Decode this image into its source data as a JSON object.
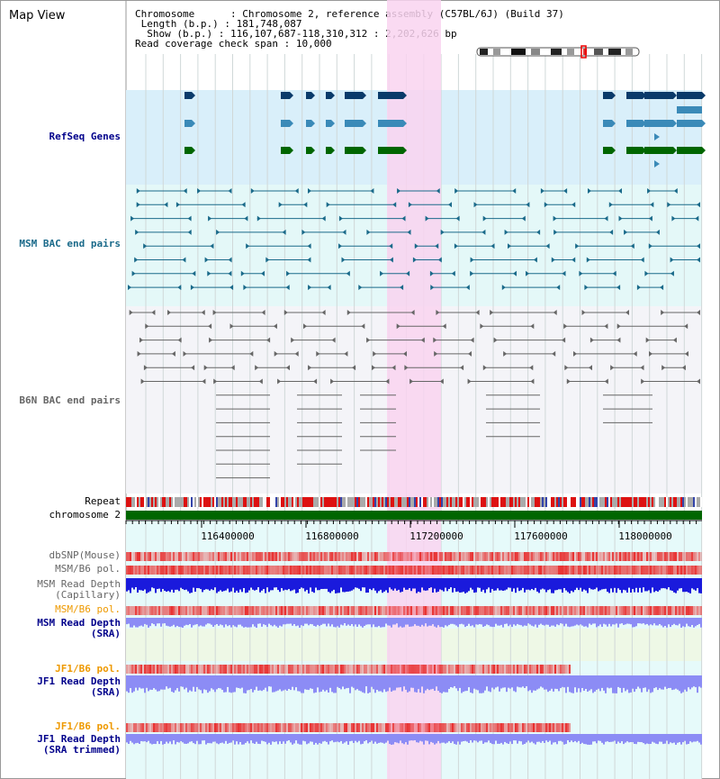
{
  "title": "Map View",
  "info": {
    "chromosome_key": "Chromosome",
    "chromosome_val": "Chromosome 2, reference assembly (C57BL/6J) (Build 37)",
    "length_key": "Length (b.p.)",
    "length_val": "181,748,087",
    "show_key": "Show (b.p.)",
    "show_val": "116,107,687-118,310,312 : 2,202,626 bp",
    "coverage_key": "Read coverage check span",
    "coverage_val": "10,000"
  },
  "tracks": {
    "refseq": "RefSeq Genes",
    "msm_bac": "MSM BAC end pairs",
    "b6n_bac": "B6N BAC end pairs",
    "repeat": "Repeat",
    "chromosome": "chromosome 2",
    "dbsnp": "dbSNP(Mouse)",
    "msm_b6_pol_1": "MSM/B6 pol.",
    "msm_read_depth_cap_1": "MSM Read Depth",
    "msm_read_depth_cap_2": "(Capillary)",
    "msm_b6_pol_2": "MSM/B6 pol.",
    "msm_read_depth_sra_1": "MSM Read Depth",
    "msm_read_depth_sra_2": "(SRA)",
    "jf1_b6_pol_1": "JF1/B6 pol.",
    "jf1_read_depth_sra_1": "JF1 Read Depth",
    "jf1_read_depth_sra_2": "(SRA)",
    "jf1_b6_pol_2": "JF1/B6 pol.",
    "jf1_read_depth_trim_1": "JF1 Read Depth",
    "jf1_read_depth_trim_2": "(SRA trimmed)"
  },
  "ruler": [
    "116400000",
    "116800000",
    "117200000",
    "117600000",
    "118000000"
  ],
  "colors": {
    "refseq_bg": "#d9effa",
    "msm_bac_line": "#1a6a8a",
    "b6n_bac_line": "#666666",
    "highlight": "#f9d3f0",
    "chromosome_bar": "#006600",
    "depth_blue": "#1a1adc",
    "depth_light": "#8c8cf5",
    "pol_red": "#e84040",
    "label_blue": "#00008b",
    "label_orange": "#ee9900"
  }
}
